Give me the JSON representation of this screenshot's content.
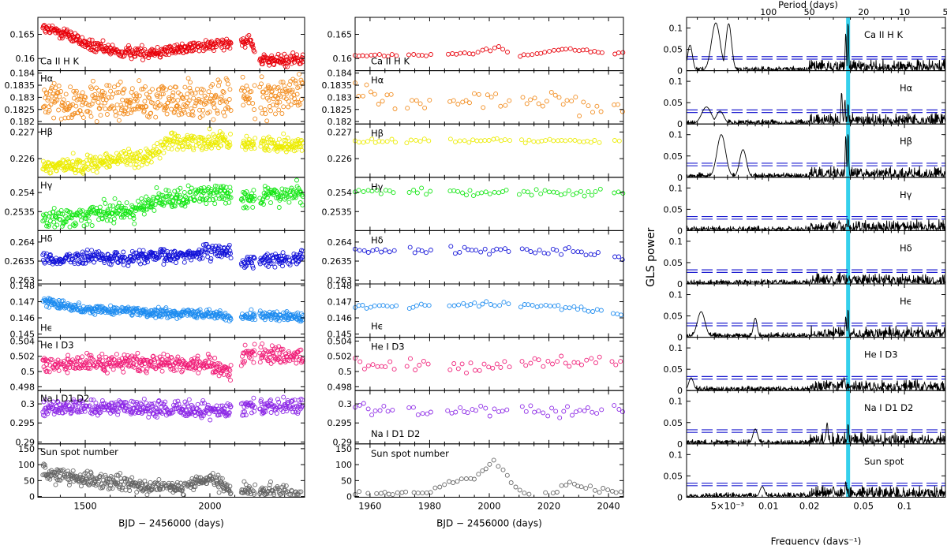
{
  "chart_data": [
    {
      "type": "scatter",
      "name": "full-time-series",
      "xlabel": "BJD − 2456000 (days)",
      "xlim": [
        1310,
        2380
      ],
      "xticks": [
        1500,
        2000
      ],
      "panels": [
        {
          "label": "Ca II H K",
          "color": "#e8000a",
          "ylim": [
            0.1575,
            0.1685
          ],
          "yticks": [
            "0.165",
            "0.16"
          ],
          "tickvals": [
            0.165,
            0.16
          ],
          "segments": [
            [
              1330,
              0.1662
            ],
            [
              1420,
              0.1652
            ],
            [
              1520,
              0.1625
            ],
            [
              1650,
              0.1612
            ],
            [
              1800,
              0.1615
            ],
            [
              1950,
              0.1625
            ],
            [
              2080,
              0.1632
            ],
            [
              2120,
              0.163
            ],
            [
              2160,
              0.1645
            ],
            [
              2200,
              0.1595
            ],
            [
              2370,
              0.1598
            ]
          ],
          "noise": 0.0012,
          "density": 1.0
        },
        {
          "label": "Hα",
          "color": "#f28c1e",
          "ylim": [
            0.1819,
            0.1841
          ],
          "yticks": [
            "0.184",
            "0.1835",
            "0.183",
            "0.1825",
            "0.182"
          ],
          "tickvals": [
            0.184,
            0.1835,
            0.183,
            0.1825,
            0.182
          ],
          "segments": [
            [
              1330,
              0.18285
            ],
            [
              1700,
              0.1828
            ],
            [
              1950,
              0.18285
            ],
            [
              2100,
              0.183
            ],
            [
              2370,
              0.1832
            ]
          ],
          "noise": 0.0008,
          "density": 1.0
        },
        {
          "label": "Hβ",
          "color": "#ecec00",
          "ylim": [
            0.2253,
            0.2273
          ],
          "yticks": [
            "0.227",
            "0.226"
          ],
          "tickvals": [
            0.227,
            0.226
          ],
          "segments": [
            [
              1330,
              0.22565
            ],
            [
              1600,
              0.2259
            ],
            [
              1780,
              0.22615
            ],
            [
              1830,
              0.22665
            ],
            [
              2080,
              0.22665
            ],
            [
              2120,
              0.2266
            ],
            [
              2370,
              0.2265
            ]
          ],
          "noise": 0.0003,
          "density": 1.0
        },
        {
          "label": "Hγ",
          "color": "#14e614",
          "ylim": [
            0.253,
            0.2544
          ],
          "yticks": [
            "0.254",
            "0.2535"
          ],
          "tickvals": [
            0.254,
            0.2535
          ],
          "segments": [
            [
              1330,
              0.2533
            ],
            [
              1700,
              0.25355
            ],
            [
              1800,
              0.2538
            ],
            [
              2080,
              0.254
            ],
            [
              2150,
              0.25385
            ],
            [
              2370,
              0.25395
            ]
          ],
          "noise": 0.00025,
          "density": 1.0
        },
        {
          "label": "Hδ",
          "color": "#1010d8",
          "ylim": [
            0.2629,
            0.2643
          ],
          "yticks": [
            "0.264",
            "0.2635",
            "0.263"
          ],
          "tickvals": [
            0.264,
            0.2635,
            0.263
          ],
          "segments": [
            [
              1330,
              0.26358
            ],
            [
              1800,
              0.2636
            ],
            [
              2080,
              0.26378
            ],
            [
              2120,
              0.26345
            ],
            [
              2370,
              0.2636
            ]
          ],
          "noise": 0.00018,
          "density": 1.0
        },
        {
          "label": "Hϵ",
          "color": "#1e8cf0",
          "ylim": [
            0.1448,
            0.1481
          ],
          "yticks": [
            "0.148",
            "0.147",
            "0.146",
            "0.145"
          ],
          "tickvals": [
            0.148,
            0.147,
            0.146,
            0.145
          ],
          "segments": [
            [
              1330,
              0.14705
            ],
            [
              1500,
              0.14655
            ],
            [
              1800,
              0.1463
            ],
            [
              2000,
              0.1463
            ],
            [
              2080,
              0.146
            ],
            [
              2150,
              0.1462
            ],
            [
              2370,
              0.146
            ]
          ],
          "noise": 0.00025,
          "density": 1.0
        },
        {
          "label": "He I D3",
          "color": "#f01e78",
          "ylim": [
            0.4975,
            0.5045
          ],
          "yticks": [
            "0.504",
            "0.502",
            "0.5",
            "0.498"
          ],
          "tickvals": [
            0.504,
            0.502,
            0.5,
            0.498
          ],
          "segments": [
            [
              1330,
              0.5008
            ],
            [
              1700,
              0.5012
            ],
            [
              2000,
              0.501
            ],
            [
              2080,
              0.5
            ],
            [
              2150,
              0.5025
            ],
            [
              2370,
              0.502
            ]
          ],
          "noise": 0.0011,
          "density": 1.0
        },
        {
          "label": "Na I D1 D2",
          "color": "#8c28e6",
          "ylim": [
            0.2895,
            0.3035
          ],
          "yticks": [
            "0.3",
            "0.295",
            "0.29"
          ],
          "tickvals": [
            0.3,
            0.295,
            0.29
          ],
          "segments": [
            [
              1330,
              0.299
            ],
            [
              1700,
              0.299
            ],
            [
              2000,
              0.298
            ],
            [
              2150,
              0.2995
            ],
            [
              2370,
              0.2995
            ]
          ],
          "noise": 0.002,
          "density": 1.0
        },
        {
          "label": "Sun spot number",
          "color": "#646464",
          "ylim": [
            -2,
            165
          ],
          "yticks": [
            "150",
            "100",
            "50",
            "0"
          ],
          "tickvals": [
            150,
            100,
            50,
            0
          ],
          "segments": [
            [
              1330,
              75
            ],
            [
              1500,
              55
            ],
            [
              1700,
              35
            ],
            [
              1900,
              30
            ],
            [
              2000,
              55
            ],
            [
              2080,
              20
            ],
            [
              2370,
              8
            ]
          ],
          "noise": 22,
          "density": 1.0
        }
      ]
    },
    {
      "type": "scatter",
      "name": "zoom-time-series",
      "xlabel": "BJD − 2456000 (days)",
      "xlim": [
        1955,
        2045
      ],
      "xticks": [
        1960,
        1980,
        2000,
        2020,
        2040
      ],
      "panels": [
        {
          "label": "Ca II H K",
          "color": "#e8000a",
          "segments": [
            [
              1955,
              0.1605
            ],
            [
              1995,
              0.161
            ],
            [
              2003,
              0.1625
            ],
            [
              2010,
              0.1605
            ],
            [
              2025,
              0.162
            ],
            [
              2045,
              0.161
            ]
          ],
          "noise": 0.0003
        },
        {
          "label": "Hα",
          "color": "#f28c1e",
          "segments": [
            [
              1955,
              0.1832
            ],
            [
              1975,
              0.1827
            ],
            [
              2000,
              0.183
            ],
            [
              2020,
              0.1829
            ],
            [
              2045,
              0.1824
            ]
          ],
          "noise": 0.0004
        },
        {
          "label": "Hβ",
          "color": "#ecec00",
          "segments": [
            [
              1955,
              0.22665
            ],
            [
              2045,
              0.22668
            ]
          ],
          "noise": 8e-05
        },
        {
          "label": "Hγ",
          "color": "#14e614",
          "segments": [
            [
              1955,
              0.25403
            ],
            [
              2045,
              0.25398
            ]
          ],
          "noise": 0.0001
        },
        {
          "label": "Hδ",
          "color": "#1010d8",
          "segments": [
            [
              1955,
              0.26375
            ],
            [
              2000,
              0.2638
            ],
            [
              2045,
              0.26365
            ]
          ],
          "noise": 0.0001
        },
        {
          "label": "Hϵ",
          "color": "#1e8cf0",
          "segments": [
            [
              1955,
              0.14665
            ],
            [
              2000,
              0.1469
            ],
            [
              2030,
              0.1466
            ],
            [
              2045,
              0.1462
            ]
          ],
          "noise": 0.00015
        },
        {
          "label": "He I D3",
          "color": "#f01e78",
          "segments": [
            [
              1955,
              0.5008
            ],
            [
              2000,
              0.5008
            ],
            [
              2045,
              0.5015
            ]
          ],
          "noise": 0.0008
        },
        {
          "label": "Na I D1 D2",
          "color": "#8c28e6",
          "segments": [
            [
              1955,
              0.2985
            ],
            [
              2000,
              0.2982
            ],
            [
              2045,
              0.2975
            ]
          ],
          "noise": 0.0017
        },
        {
          "label": "Sun spot number",
          "color": "#646464",
          "segments": [
            [
              1955,
              8
            ],
            [
              1980,
              12
            ],
            [
              1986,
              45
            ],
            [
              1995,
              60
            ],
            [
              2002,
              110
            ],
            [
              2008,
              40
            ],
            [
              2012,
              5
            ],
            [
              2020,
              8
            ],
            [
              2026,
              40
            ],
            [
              2035,
              25
            ],
            [
              2045,
              8
            ]
          ],
          "noise": 8
        }
      ]
    },
    {
      "type": "line",
      "name": "gls-periodograms",
      "title": "Period (days)",
      "xlabel": "Frequency (days⁻¹)",
      "ylabel": "GLS power",
      "xscale": "log",
      "xlim": [
        0.0025,
        0.2
      ],
      "ylim": [
        0,
        0.125
      ],
      "xticks": [
        {
          "value": 0.005,
          "label": "5×10⁻³"
        },
        {
          "value": 0.01,
          "label": "0.01"
        },
        {
          "value": 0.02,
          "label": "0.02"
        },
        {
          "value": 0.05,
          "label": "0.05"
        },
        {
          "value": 0.1,
          "label": "0.1"
        }
      ],
      "period_ticks": [
        {
          "value": 100,
          "label": "100"
        },
        {
          "value": 50,
          "label": "50"
        },
        {
          "value": 20,
          "label": "20"
        },
        {
          "value": 10,
          "label": "10"
        },
        {
          "value": 5,
          "label": "5"
        }
      ],
      "yticks": [
        "0.1",
        "0.05",
        "0"
      ],
      "highlight_frequency": 0.0385,
      "fap_levels": [
        0.027,
        0.033
      ],
      "panels": [
        {
          "label": "Ca II H K",
          "peaks": [
            [
              0.00265,
              0.06,
              0.05
            ],
            [
              0.0041,
              0.112,
              0.09
            ],
            [
              0.0051,
              0.11,
              0.06
            ],
            [
              0.037,
              0.09,
              0.012
            ],
            [
              0.0385,
              0.12,
              0.01
            ]
          ],
          "seed": 11
        },
        {
          "label": "Hα",
          "peaks": [
            [
              0.0035,
              0.04,
              0.1
            ],
            [
              0.0044,
              0.03,
              0.08
            ],
            [
              0.0345,
              0.075,
              0.015
            ],
            [
              0.0365,
              0.06,
              0.01
            ],
            [
              0.0385,
              0.05,
              0.01
            ]
          ],
          "seed": 23
        },
        {
          "label": "Hβ",
          "peaks": [
            [
              0.0045,
              0.1,
              0.09
            ],
            [
              0.0065,
              0.065,
              0.07
            ],
            [
              0.037,
              0.1,
              0.012
            ],
            [
              0.0385,
              0.11,
              0.01
            ]
          ],
          "seed": 37
        },
        {
          "label": "Hγ",
          "peaks": [
            [
              0.033,
              0.02,
              0.02
            ],
            [
              0.0385,
              0.028,
              0.01
            ]
          ],
          "seed": 41
        },
        {
          "label": "Hδ",
          "peaks": [
            [
              0.029,
              0.015,
              0.02
            ],
            [
              0.035,
              0.02,
              0.02
            ]
          ],
          "seed": 53
        },
        {
          "label": "Hϵ",
          "peaks": [
            [
              0.0032,
              0.06,
              0.08
            ],
            [
              0.008,
              0.045,
              0.04
            ],
            [
              0.0385,
              0.07,
              0.01
            ],
            [
              0.037,
              0.05,
              0.012
            ]
          ],
          "seed": 61
        },
        {
          "label": "He I D3",
          "peaks": [
            [
              0.0027,
              0.03,
              0.05
            ],
            [
              0.029,
              0.02,
              0.02
            ],
            [
              0.036,
              0.03,
              0.02
            ]
          ],
          "seed": 71
        },
        {
          "label": "Na I D1 D2",
          "peaks": [
            [
              0.008,
              0.035,
              0.05
            ],
            [
              0.027,
              0.05,
              0.02
            ],
            [
              0.0385,
              0.05,
              0.01
            ]
          ],
          "seed": 83
        },
        {
          "label": "Sun spot",
          "peaks": [
            [
              0.009,
              0.025,
              0.05
            ],
            [
              0.03,
              0.025,
              0.02
            ],
            [
              0.037,
              0.038,
              0.012
            ]
          ],
          "seed": 97
        }
      ]
    }
  ]
}
